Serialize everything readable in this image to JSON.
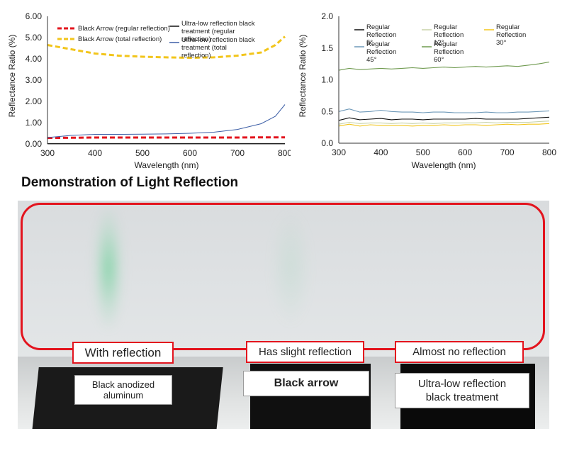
{
  "chart_data": [
    {
      "type": "line",
      "xlabel": "Wavelength (nm)",
      "ylabel": "Reflectance Ratio (%)",
      "xlim": [
        300,
        800
      ],
      "ylim": [
        0,
        6
      ],
      "x_ticks": [
        "300",
        "400",
        "500",
        "600",
        "700",
        "800"
      ],
      "y_ticks": [
        "0.00",
        "1.00",
        "2.00",
        "3.00",
        "4.00",
        "5.00",
        "6.00"
      ],
      "grid": false,
      "legend_placement": "top",
      "x": [
        300,
        350,
        400,
        450,
        500,
        550,
        600,
        650,
        700,
        750,
        780,
        800
      ],
      "series": [
        {
          "name": "Black Arrow (regular reflection)",
          "color": "#e3141e",
          "style": "dashed",
          "values": [
            0.28,
            0.29,
            0.3,
            0.3,
            0.3,
            0.3,
            0.3,
            0.3,
            0.3,
            0.31,
            0.31,
            0.31
          ]
        },
        {
          "name": "Black Arrow (total reflection)",
          "color": "#f2c51b",
          "style": "dashed",
          "values": [
            4.65,
            4.45,
            4.25,
            4.15,
            4.1,
            4.07,
            4.05,
            4.07,
            4.15,
            4.3,
            4.65,
            5.05
          ]
        },
        {
          "name": "Ultra-low reflection black treatment (regular reflection)",
          "color": "#111111",
          "style": "solid",
          "values": [
            0.02,
            0.02,
            0.02,
            0.02,
            0.02,
            0.02,
            0.02,
            0.02,
            0.02,
            0.02,
            0.02,
            0.02
          ]
        },
        {
          "name": "Ultra-low reflection black treatment (total reflection)",
          "color": "#3c5ea6",
          "style": "solid",
          "values": [
            0.3,
            0.4,
            0.45,
            0.45,
            0.46,
            0.47,
            0.5,
            0.55,
            0.68,
            0.95,
            1.3,
            1.85
          ]
        }
      ]
    },
    {
      "type": "line",
      "xlabel": "Wavelength (nm)",
      "ylabel": "Reflectance Ratio (%)",
      "xlim": [
        300,
        800
      ],
      "ylim": [
        0,
        2
      ],
      "x_ticks": [
        "300",
        "400",
        "500",
        "600",
        "700",
        "800"
      ],
      "y_ticks": [
        "0.0",
        "0.5",
        "1.0",
        "1.5",
        "2.0"
      ],
      "grid": false,
      "legend_placement": "top",
      "x": [
        300,
        325,
        350,
        375,
        400,
        425,
        450,
        475,
        500,
        525,
        550,
        575,
        600,
        625,
        650,
        675,
        700,
        725,
        750,
        775,
        800
      ],
      "series": [
        {
          "name": "Regular Reflection 5°",
          "color": "#111111",
          "values": [
            0.36,
            0.4,
            0.37,
            0.38,
            0.39,
            0.37,
            0.38,
            0.38,
            0.37,
            0.38,
            0.38,
            0.38,
            0.38,
            0.39,
            0.38,
            0.38,
            0.38,
            0.38,
            0.39,
            0.4,
            0.41
          ]
        },
        {
          "name": "Regular Reflection 12°",
          "color": "#c8d3a8",
          "values": [
            0.3,
            0.33,
            0.31,
            0.32,
            0.32,
            0.31,
            0.32,
            0.31,
            0.32,
            0.31,
            0.32,
            0.32,
            0.32,
            0.32,
            0.33,
            0.32,
            0.33,
            0.33,
            0.33,
            0.34,
            0.35
          ]
        },
        {
          "name": "Regular Reflection 30°",
          "color": "#f2c51b",
          "values": [
            0.27,
            0.3,
            0.27,
            0.29,
            0.28,
            0.28,
            0.28,
            0.27,
            0.28,
            0.28,
            0.29,
            0.28,
            0.29,
            0.29,
            0.28,
            0.29,
            0.3,
            0.29,
            0.3,
            0.3,
            0.31
          ]
        },
        {
          "name": "Regular Reflection 45°",
          "color": "#6d98b8",
          "values": [
            0.5,
            0.54,
            0.49,
            0.5,
            0.52,
            0.5,
            0.49,
            0.49,
            0.48,
            0.49,
            0.49,
            0.48,
            0.48,
            0.48,
            0.49,
            0.48,
            0.48,
            0.49,
            0.49,
            0.5,
            0.51
          ]
        },
        {
          "name": "Regular Reflection 60°",
          "color": "#6f9a4f",
          "values": [
            1.15,
            1.18,
            1.16,
            1.17,
            1.18,
            1.17,
            1.18,
            1.19,
            1.18,
            1.19,
            1.2,
            1.19,
            1.2,
            1.21,
            1.2,
            1.21,
            1.22,
            1.21,
            1.23,
            1.25,
            1.28
          ]
        }
      ]
    }
  ],
  "demo": {
    "title": "Demonstration of Light Reflection",
    "labels": {
      "with_reflection": "With reflection",
      "slight_reflection": "Has slight reflection",
      "no_reflection": "Almost no reflection",
      "anodized": "Black anodized aluminum",
      "black_arrow": "Black arrow",
      "ultra_low": "Ultra-low reflection black treatment"
    }
  }
}
